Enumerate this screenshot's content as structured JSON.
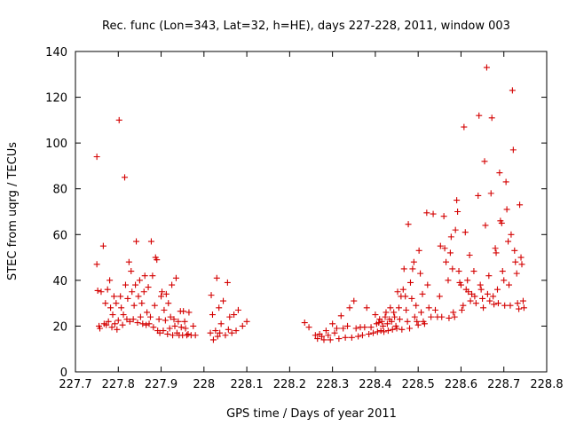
{
  "chart_data": {
    "type": "scatter",
    "title": "Rec. func (Lon=343, Lat=32, h=HE), days 227-228, 2011, window 003",
    "xlabel": "GPS time / Days of year 2011",
    "ylabel": "STEC from uqrg / TECUs",
    "xlim": [
      227.7,
      228.8
    ],
    "ylim": [
      0,
      140
    ],
    "x_ticks": [
      "227.7",
      "227.8",
      "227.9",
      "228",
      "228.1",
      "228.2",
      "228.3",
      "228.4",
      "228.5",
      "228.6",
      "228.7",
      "228.8"
    ],
    "y_ticks": [
      "0",
      "20",
      "40",
      "60",
      "80",
      "100",
      "120",
      "140"
    ],
    "grid": false,
    "marker": "plus",
    "color": "#d40000",
    "points": [
      [
        227.75,
        94
      ],
      [
        227.75,
        47
      ],
      [
        227.752,
        35.5
      ],
      [
        227.755,
        20
      ],
      [
        227.757,
        19
      ],
      [
        227.76,
        35
      ],
      [
        227.765,
        55
      ],
      [
        227.767,
        21
      ],
      [
        227.77,
        30
      ],
      [
        227.772,
        20.5
      ],
      [
        227.775,
        36
      ],
      [
        227.777,
        22
      ],
      [
        227.78,
        40
      ],
      [
        227.782,
        28
      ],
      [
        227.785,
        19.5
      ],
      [
        227.787,
        25
      ],
      [
        227.79,
        33
      ],
      [
        227.792,
        21
      ],
      [
        227.795,
        30
      ],
      [
        227.797,
        18.5
      ],
      [
        227.8,
        22.5
      ],
      [
        227.802,
        110
      ],
      [
        227.805,
        33
      ],
      [
        227.807,
        28
      ],
      [
        227.81,
        20.5
      ],
      [
        227.812,
        25
      ],
      [
        227.815,
        85
      ],
      [
        227.817,
        38
      ],
      [
        227.82,
        23
      ],
      [
        227.822,
        32
      ],
      [
        227.825,
        48
      ],
      [
        227.827,
        22
      ],
      [
        227.83,
        44
      ],
      [
        227.832,
        35
      ],
      [
        227.835,
        23
      ],
      [
        227.837,
        29
      ],
      [
        227.84,
        38
      ],
      [
        227.842,
        57
      ],
      [
        227.845,
        21.5
      ],
      [
        227.847,
        33
      ],
      [
        227.85,
        40
      ],
      [
        227.852,
        24
      ],
      [
        227.855,
        30
      ],
      [
        227.857,
        21
      ],
      [
        227.86,
        35
      ],
      [
        227.862,
        42
      ],
      [
        227.865,
        20.5
      ],
      [
        227.867,
        26
      ],
      [
        227.87,
        37
      ],
      [
        227.872,
        21
      ],
      [
        227.875,
        24
      ],
      [
        227.877,
        57
      ],
      [
        227.88,
        42
      ],
      [
        227.882,
        19.5
      ],
      [
        227.885,
        29
      ],
      [
        227.887,
        50
      ],
      [
        227.89,
        49
      ],
      [
        227.892,
        18
      ],
      [
        227.895,
        23
      ],
      [
        227.897,
        17
      ],
      [
        227.9,
        33
      ],
      [
        227.902,
        35
      ],
      [
        227.905,
        18
      ],
      [
        227.907,
        27
      ],
      [
        227.91,
        22.5
      ],
      [
        227.912,
        34
      ],
      [
        227.915,
        16.5
      ],
      [
        227.917,
        30
      ],
      [
        227.92,
        19
      ],
      [
        227.922,
        24
      ],
      [
        227.925,
        38
      ],
      [
        227.927,
        16
      ],
      [
        227.93,
        23
      ],
      [
        227.932,
        20
      ],
      [
        227.935,
        41
      ],
      [
        227.937,
        17
      ],
      [
        227.94,
        22
      ],
      [
        227.942,
        16
      ],
      [
        227.945,
        26.5
      ],
      [
        227.947,
        19.5
      ],
      [
        227.95,
        16
      ],
      [
        227.952,
        26.5
      ],
      [
        227.955,
        22
      ],
      [
        227.957,
        19
      ],
      [
        227.96,
        16
      ],
      [
        227.963,
        16.5
      ],
      [
        227.965,
        26
      ],
      [
        227.97,
        16
      ],
      [
        227.975,
        20
      ],
      [
        227.98,
        16
      ],
      [
        228.015,
        17
      ],
      [
        228.017,
        33.5
      ],
      [
        228.02,
        25
      ],
      [
        228.022,
        14
      ],
      [
        228.027,
        18
      ],
      [
        228.03,
        41
      ],
      [
        228.032,
        15.5
      ],
      [
        228.035,
        28
      ],
      [
        228.037,
        17
      ],
      [
        228.04,
        21
      ],
      [
        228.045,
        31
      ],
      [
        228.05,
        16
      ],
      [
        228.055,
        39
      ],
      [
        228.057,
        18.5
      ],
      [
        228.06,
        24
      ],
      [
        228.065,
        17
      ],
      [
        228.07,
        25
      ],
      [
        228.075,
        18
      ],
      [
        228.08,
        27
      ],
      [
        228.09,
        20
      ],
      [
        228.1,
        22
      ],
      [
        228.235,
        21.5
      ],
      [
        228.245,
        19.5
      ],
      [
        228.26,
        16
      ],
      [
        228.265,
        14.5
      ],
      [
        228.27,
        16.5
      ],
      [
        228.275,
        15.5
      ],
      [
        228.28,
        14
      ],
      [
        228.285,
        18
      ],
      [
        228.29,
        16
      ],
      [
        228.295,
        14
      ],
      [
        228.3,
        21
      ],
      [
        228.305,
        17
      ],
      [
        228.31,
        19
      ],
      [
        228.315,
        14.5
      ],
      [
        228.32,
        24.5
      ],
      [
        228.325,
        19
      ],
      [
        228.33,
        15
      ],
      [
        228.335,
        20
      ],
      [
        228.34,
        28
      ],
      [
        228.345,
        15
      ],
      [
        228.35,
        31
      ],
      [
        228.355,
        19
      ],
      [
        228.36,
        15.5
      ],
      [
        228.365,
        19.5
      ],
      [
        228.37,
        16
      ],
      [
        228.375,
        19.5
      ],
      [
        228.38,
        28
      ],
      [
        228.385,
        16.5
      ],
      [
        228.39,
        19.5
      ],
      [
        228.395,
        17
      ],
      [
        228.4,
        25
      ],
      [
        228.403,
        21
      ],
      [
        228.405,
        17.5
      ],
      [
        228.408,
        21.5
      ],
      [
        228.41,
        23
      ],
      [
        228.413,
        18
      ],
      [
        228.415,
        22
      ],
      [
        228.418,
        20
      ],
      [
        228.42,
        17.5
      ],
      [
        228.423,
        24
      ],
      [
        228.425,
        26
      ],
      [
        228.428,
        21
      ],
      [
        228.43,
        18
      ],
      [
        228.433,
        23
      ],
      [
        228.435,
        28
      ],
      [
        228.438,
        22
      ],
      [
        228.44,
        18.5
      ],
      [
        228.443,
        26
      ],
      [
        228.445,
        24
      ],
      [
        228.448,
        20
      ],
      [
        228.45,
        19
      ],
      [
        228.452,
        35
      ],
      [
        228.455,
        28
      ],
      [
        228.457,
        23
      ],
      [
        228.46,
        33
      ],
      [
        228.462,
        18.5
      ],
      [
        228.465,
        36
      ],
      [
        228.467,
        45
      ],
      [
        228.47,
        33
      ],
      [
        228.472,
        27
      ],
      [
        228.475,
        22
      ],
      [
        228.477,
        64.5
      ],
      [
        228.48,
        19
      ],
      [
        228.482,
        39
      ],
      [
        228.485,
        32
      ],
      [
        228.487,
        45
      ],
      [
        228.49,
        48
      ],
      [
        228.492,
        24
      ],
      [
        228.495,
        29
      ],
      [
        228.497,
        22
      ],
      [
        228.5,
        20.5
      ],
      [
        228.502,
        53
      ],
      [
        228.505,
        43
      ],
      [
        228.507,
        26
      ],
      [
        228.51,
        34
      ],
      [
        228.512,
        22
      ],
      [
        228.515,
        21
      ],
      [
        228.52,
        69.5
      ],
      [
        228.522,
        38
      ],
      [
        228.525,
        28
      ],
      [
        228.53,
        24
      ],
      [
        228.535,
        69
      ],
      [
        228.54,
        27
      ],
      [
        228.545,
        24
      ],
      [
        228.55,
        33
      ],
      [
        228.552,
        55
      ],
      [
        228.555,
        24
      ],
      [
        228.56,
        68
      ],
      [
        228.562,
        54
      ],
      [
        228.565,
        48
      ],
      [
        228.57,
        40
      ],
      [
        228.572,
        23.5
      ],
      [
        228.575,
        52
      ],
      [
        228.577,
        59
      ],
      [
        228.58,
        45
      ],
      [
        228.582,
        26
      ],
      [
        228.585,
        24
      ],
      [
        228.587,
        62
      ],
      [
        228.59,
        75
      ],
      [
        228.592,
        70
      ],
      [
        228.595,
        44
      ],
      [
        228.597,
        39
      ],
      [
        228.6,
        38
      ],
      [
        228.602,
        27
      ],
      [
        228.605,
        29
      ],
      [
        228.607,
        107
      ],
      [
        228.61,
        61
      ],
      [
        228.612,
        36
      ],
      [
        228.615,
        40
      ],
      [
        228.617,
        35
      ],
      [
        228.62,
        51
      ],
      [
        228.622,
        31
      ],
      [
        228.625,
        34
      ],
      [
        228.63,
        44
      ],
      [
        228.632,
        33
      ],
      [
        228.635,
        30
      ],
      [
        228.64,
        77
      ],
      [
        228.642,
        112
      ],
      [
        228.645,
        38
      ],
      [
        228.647,
        36
      ],
      [
        228.65,
        32
      ],
      [
        228.652,
        28
      ],
      [
        228.655,
        92
      ],
      [
        228.657,
        64
      ],
      [
        228.66,
        133
      ],
      [
        228.662,
        34
      ],
      [
        228.665,
        42
      ],
      [
        228.667,
        31
      ],
      [
        228.67,
        78
      ],
      [
        228.672,
        111
      ],
      [
        228.675,
        33
      ],
      [
        228.677,
        29.5
      ],
      [
        228.68,
        54
      ],
      [
        228.682,
        52
      ],
      [
        228.685,
        36
      ],
      [
        228.687,
        30
      ],
      [
        228.69,
        87
      ],
      [
        228.692,
        66
      ],
      [
        228.695,
        65
      ],
      [
        228.697,
        44
      ],
      [
        228.7,
        40
      ],
      [
        228.702,
        29
      ],
      [
        228.705,
        83
      ],
      [
        228.707,
        71
      ],
      [
        228.71,
        57
      ],
      [
        228.712,
        38
      ],
      [
        228.715,
        29
      ],
      [
        228.717,
        60
      ],
      [
        228.72,
        123
      ],
      [
        228.722,
        97
      ],
      [
        228.725,
        53
      ],
      [
        228.727,
        48
      ],
      [
        228.73,
        43
      ],
      [
        228.732,
        30
      ],
      [
        228.735,
        27.5
      ],
      [
        228.737,
        73
      ],
      [
        228.74,
        50
      ],
      [
        228.742,
        47
      ],
      [
        228.745,
        31
      ],
      [
        228.747,
        28
      ]
    ]
  }
}
